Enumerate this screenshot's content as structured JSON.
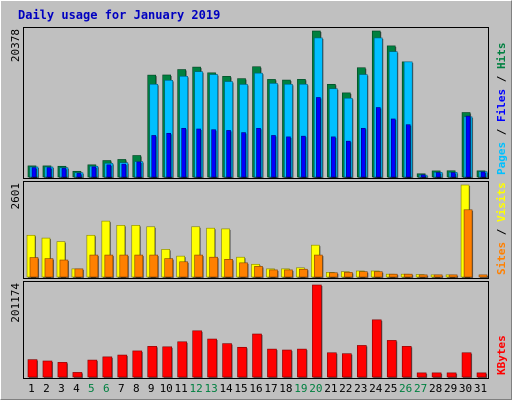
{
  "chart_data": {
    "type": "bar",
    "title": "Daily usage for January 2019",
    "categories": [
      "1",
      "2",
      "3",
      "4",
      "5",
      "6",
      "7",
      "8",
      "9",
      "10",
      "11",
      "12",
      "13",
      "14",
      "15",
      "16",
      "17",
      "18",
      "19",
      "20",
      "21",
      "22",
      "23",
      "24",
      "25",
      "26",
      "27",
      "28",
      "29",
      "30",
      "31"
    ],
    "weekend_days": [
      5,
      6,
      12,
      13,
      19,
      20,
      26,
      27
    ],
    "panels": [
      {
        "name": "hits",
        "max_label": "20378",
        "ylim": [
          0,
          20378
        ],
        "right_label": [
          {
            "text": "Pages",
            "color": "#00c0ff"
          },
          {
            "text": " / ",
            "color": "#000000"
          },
          {
            "text": "Files",
            "color": "#0000ff"
          },
          {
            "text": " / ",
            "color": "#000000"
          },
          {
            "text": "Hits",
            "color": "#008040"
          }
        ],
        "series": [
          {
            "name": "Hits",
            "color": "#008040",
            "values": [
              1550,
              1550,
              1500,
              800,
              1700,
              2300,
              2450,
              3000,
              14220,
              14240,
              15000,
              15340,
              14540,
              14050,
              13730,
              15390,
              13620,
              13530,
              13630,
              20378,
              12940,
              11740,
              15250,
              20378,
              18300,
              16070,
              450,
              850,
              870,
              9000,
              860
            ]
          },
          {
            "name": "Files",
            "color": "#0000ff",
            "values": [
              1300,
              1300,
              1200,
              500,
              1400,
              1700,
              1800,
              2100,
              5800,
              6100,
              6800,
              6700,
              6600,
              6500,
              6200,
              6800,
              5800,
              5600,
              5700,
              11100,
              5600,
              5000,
              6800,
              9700,
              8100,
              7300,
              300,
              600,
              600,
              8500,
              700
            ]
          },
          {
            "name": "Pages",
            "color": "#00c0ff",
            "values": [
              1400,
              1400,
              1300,
              600,
              1500,
              1900,
              2000,
              2150,
              12940,
              13490,
              14050,
              14700,
              14300,
              13320,
              12920,
              14490,
              13060,
              12940,
              12940,
              19410,
              12320,
              10990,
              14300,
              19410,
              17500,
              16070,
              260,
              650,
              650,
              8400,
              750
            ]
          }
        ]
      },
      {
        "name": "visits",
        "max_label": "2601",
        "ylim": [
          0,
          2601
        ],
        "right_label": [
          {
            "text": "Sites",
            "color": "#ff8000"
          },
          {
            "text": " / ",
            "color": "#000000"
          },
          {
            "text": "Visits",
            "color": "#ffff00"
          }
        ],
        "series": [
          {
            "name": "Visits",
            "color": "#ffff00",
            "values": [
              1180,
              1100,
              1000,
              230,
              1180,
              1580,
              1460,
              1460,
              1420,
              780,
              590,
              1420,
              1380,
              1360,
              560,
              360,
              230,
              230,
              260,
              900,
              130,
              150,
              170,
              170,
              80,
              80,
              70,
              60,
              60,
              2601,
              0
            ]
          },
          {
            "name": "Sites",
            "color": "#ff8000",
            "values": [
              550,
              520,
              480,
              230,
              620,
              620,
              620,
              620,
              620,
              520,
              430,
              620,
              560,
              500,
              400,
              300,
              200,
              200,
              220,
              620,
              120,
              130,
              150,
              150,
              80,
              80,
              60,
              60,
              60,
              1900,
              60
            ]
          }
        ]
      },
      {
        "name": "kbytes",
        "max_label": "201174",
        "ylim": [
          0,
          201174
        ],
        "right_label": [
          {
            "text": "KBytes",
            "color": "#ff0000"
          }
        ],
        "series": [
          {
            "name": "KBytes",
            "color": "#ff0000",
            "values": [
              38000,
              35000,
              32000,
              10000,
              37000,
              44000,
              48000,
              57000,
              67000,
              66000,
              77000,
              101000,
              83000,
              73000,
              65000,
              94000,
              61000,
              59000,
              61000,
              201174,
              53000,
              51000,
              69000,
              125000,
              80000,
              67000,
              9000,
              9000,
              9000,
              53000,
              9000
            ]
          }
        ]
      }
    ]
  }
}
